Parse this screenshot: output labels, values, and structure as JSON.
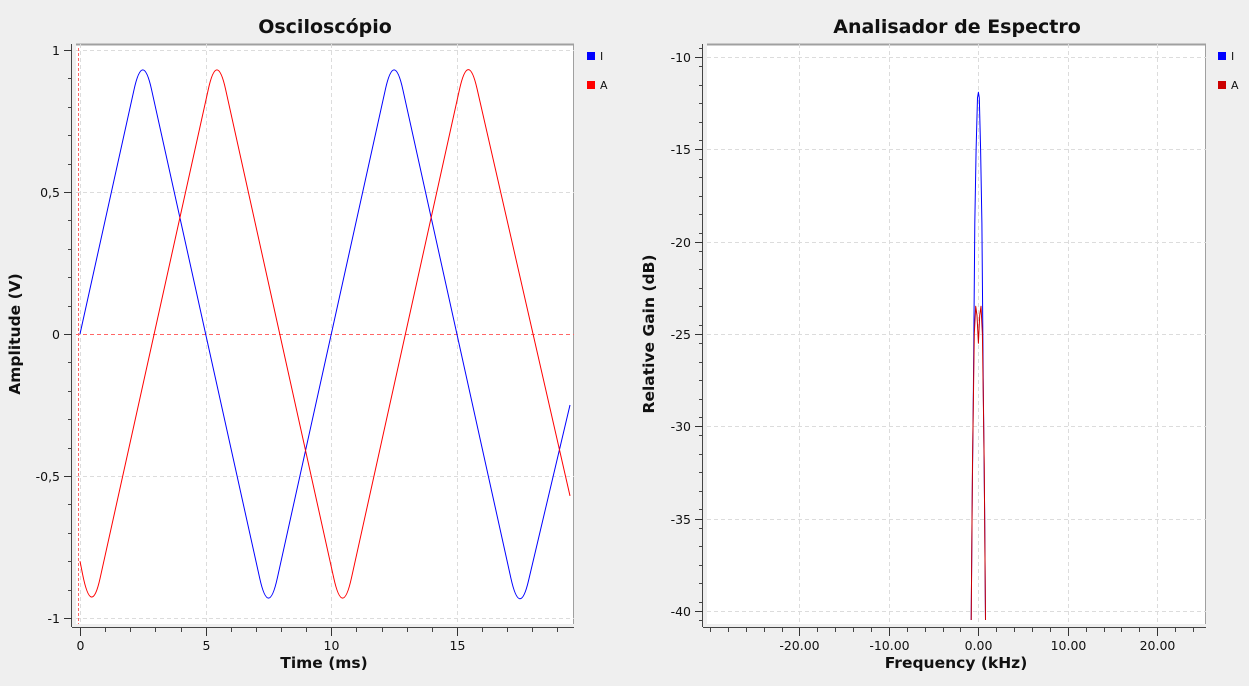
{
  "app": {
    "background": "#efefef"
  },
  "chart_data": [
    {
      "type": "line",
      "title": "Osciloscópio",
      "xlabel": "Time (ms)",
      "ylabel": "Amplitude (V)",
      "xlim": [
        0,
        19.5
      ],
      "ylim": [
        -1,
        1
      ],
      "xticks": [
        0,
        5,
        10,
        15
      ],
      "xtick_labels": [
        "0",
        "5",
        "10",
        "15"
      ],
      "yticks": [
        -1,
        -0.5,
        0,
        0.5,
        1
      ],
      "ytick_labels": [
        "-1",
        "-0,5",
        "0",
        "0,5",
        "1"
      ],
      "grid": true,
      "legend": "top-right",
      "reference_lines": {
        "zero_level": 0,
        "trigger_time": 0
      },
      "series": [
        {
          "name": "I",
          "color": "#0000ff",
          "shape": "triangle",
          "points": [
            [
              0,
              0
            ],
            [
              2.5,
              1
            ],
            [
              7.5,
              -1
            ],
            [
              12.5,
              1
            ],
            [
              17.5,
              -1
            ],
            [
              19.5,
              -0.25
            ]
          ]
        },
        {
          "name": "A",
          "color": "#ff0000",
          "shape": "triangle",
          "points": [
            [
              0,
              -0.8
            ],
            [
              0.45,
              -1
            ],
            [
              5.45,
              1
            ],
            [
              10.45,
              -1
            ],
            [
              15.45,
              1
            ],
            [
              19.5,
              -0.57
            ]
          ]
        }
      ]
    },
    {
      "type": "line",
      "title": "Analisador de Espectro",
      "xlabel": "Frequency (kHz)",
      "ylabel": "Relative Gain (dB)",
      "xlim": [
        -30,
        25
      ],
      "ylim": [
        -40.5,
        -9.5
      ],
      "xticks": [
        -20,
        -10,
        0,
        10,
        20
      ],
      "xtick_labels": [
        "-20.00",
        "-10.00",
        "0.00",
        "10.00",
        "20.00"
      ],
      "yticks": [
        -40,
        -35,
        -30,
        -25,
        -20,
        -15,
        -10
      ],
      "ytick_labels": [
        "-40",
        "-35",
        "-30",
        "-25",
        "-20",
        "-15",
        "-10"
      ],
      "grid": true,
      "legend": "top-right",
      "series": [
        {
          "name": "I",
          "color": "#0000ff",
          "points": [
            [
              -0.8,
              -40.5
            ],
            [
              -0.7,
              -34.5
            ],
            [
              -0.55,
              -28
            ],
            [
              -0.4,
              -19
            ],
            [
              -0.25,
              -15
            ],
            [
              -0.1,
              -12.2
            ],
            [
              0,
              -11.9
            ],
            [
              0.1,
              -12.2
            ],
            [
              0.25,
              -15
            ],
            [
              0.4,
              -19
            ],
            [
              0.55,
              -28
            ],
            [
              0.7,
              -34.5
            ],
            [
              0.8,
              -40.5
            ]
          ]
        },
        {
          "name": "A",
          "color": "#cc0000",
          "points": [
            [
              -0.8,
              -40.5
            ],
            [
              -0.65,
              -32
            ],
            [
              -0.45,
              -25
            ],
            [
              -0.3,
              -23.5
            ],
            [
              -0.15,
              -24
            ],
            [
              0,
              -25.5
            ],
            [
              0.15,
              -24
            ],
            [
              0.3,
              -23.5
            ],
            [
              0.45,
              -25
            ],
            [
              0.65,
              -32
            ],
            [
              0.8,
              -40.5
            ]
          ]
        }
      ]
    }
  ]
}
